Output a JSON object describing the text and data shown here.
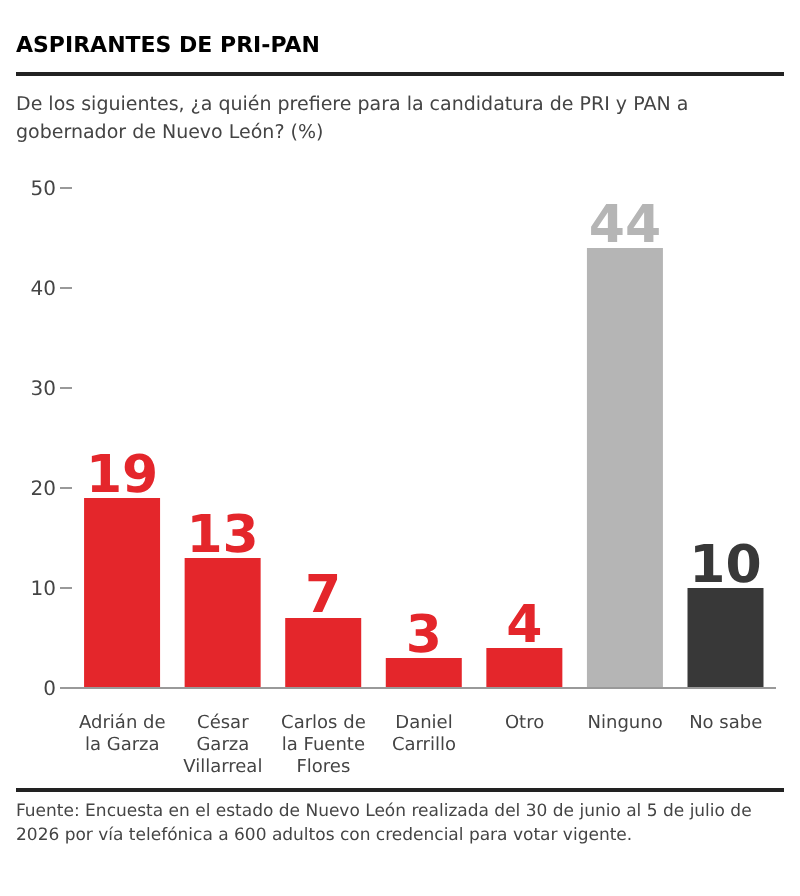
{
  "chart_data": {
    "type": "bar",
    "title": "ASPIRANTES DE PRI-PAN",
    "subtitle": "De los siguientes, ¿a quién prefiere para la candidatura de PRI y PAN a gobernador de Nuevo León?  (%)",
    "categories": [
      "Adrián de la Garza",
      "César Garza Villarreal",
      "Carlos de la Fuente Flores",
      "Daniel Carrillo",
      "Otro",
      "Ninguno",
      "No sabe"
    ],
    "values": [
      19,
      13,
      7,
      3,
      4,
      44,
      10
    ],
    "colors": [
      "#e4262b",
      "#e4262b",
      "#e4262b",
      "#e4262b",
      "#e4262b",
      "#b5b5b5",
      "#383838"
    ],
    "ylim": [
      0,
      50
    ],
    "yticks": [
      0,
      10,
      20,
      30,
      40,
      50
    ],
    "grid": false,
    "data_labels": true,
    "annotations": [
      "Fuente: Encuesta en el estado de Nuevo León realizada del 30 de junio al 5 de julio de 2026 por vía telefónica a 600 adultos con credencial para votar vigente."
    ]
  }
}
